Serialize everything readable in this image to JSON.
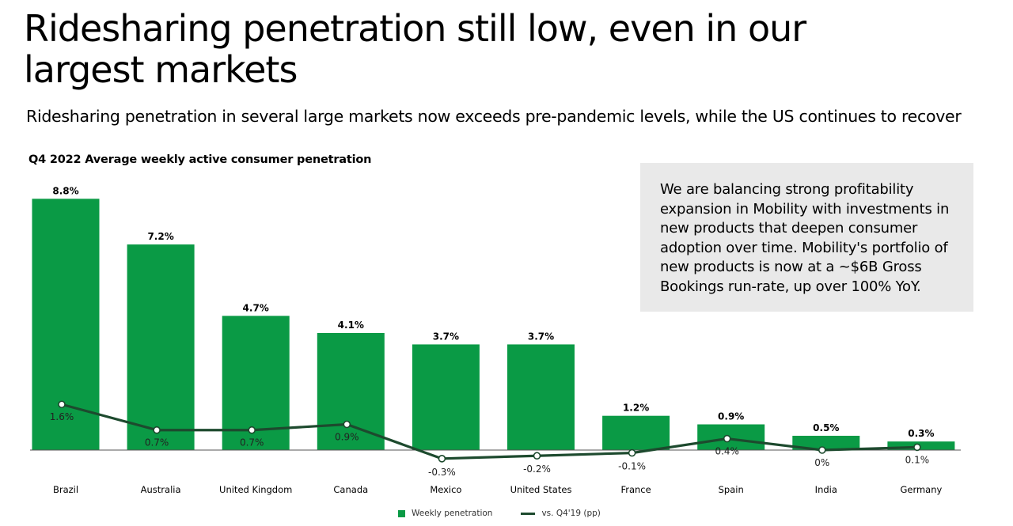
{
  "header": {
    "title": "Ridesharing penetration still low, even in our largest markets",
    "subtitle": "Ridesharing penetration in several large markets now exceeds pre-pandemic levels, while the US continues to recover"
  },
  "callout": {
    "text": "We are balancing strong profitability expansion in Mobility with investments in new products that deepen consumer adoption over time. Mobility's portfolio of new products is now at a ~$6B Gross Bookings run-rate, up over 100% YoY."
  },
  "legend": {
    "bar_label": "Weekly penetration",
    "line_label": "vs. Q4'19 (pp)"
  },
  "colors": {
    "bar": "#0a9a45",
    "line": "#1d4a2e"
  },
  "chart_data": {
    "type": "bar",
    "title": "Q4 2022 Average weekly active consumer penetration",
    "categories": [
      "Brazil",
      "Australia",
      "United Kingdom",
      "Canada",
      "Mexico",
      "United States",
      "France",
      "Spain",
      "India",
      "Germany"
    ],
    "series": [
      {
        "name": "Weekly penetration",
        "type": "bar",
        "values": [
          8.8,
          7.2,
          4.7,
          4.1,
          3.7,
          3.7,
          1.2,
          0.9,
          0.5,
          0.3
        ],
        "labels": [
          "8.8%",
          "7.2%",
          "4.7%",
          "4.1%",
          "3.7%",
          "3.7%",
          "1.2%",
          "0.9%",
          "0.5%",
          "0.3%"
        ]
      },
      {
        "name": "vs. Q4'19 (pp)",
        "type": "line",
        "values": [
          1.6,
          0.7,
          0.7,
          0.9,
          -0.3,
          -0.2,
          -0.1,
          0.4,
          0.0,
          0.1
        ],
        "labels": [
          "1.6%",
          "0.7%",
          "0.7%",
          "0.9%",
          "-0.3%",
          "-0.2%",
          "-0.1%",
          "0.4%",
          "0%",
          "0.1%"
        ]
      }
    ],
    "xlabel": "",
    "ylabel": "",
    "grid": false,
    "legend_position": "bottom-center"
  }
}
